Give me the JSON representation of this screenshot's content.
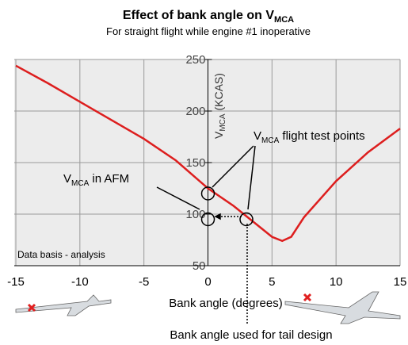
{
  "chart_data": {
    "type": "line",
    "title": {
      "text": "Effect of bank angle on V",
      "sub": "MCA"
    },
    "subtitle": "For straight flight while engine #1 inoperative",
    "xlabel": "Bank angle (degrees)",
    "ylabel": {
      "text": "V",
      "sub": "MCA",
      "rest": " (KCAS)"
    },
    "xlim": [
      -15,
      15
    ],
    "xticks": [
      -15,
      -10,
      -5,
      0,
      5,
      10,
      15
    ],
    "ylim": [
      50,
      250
    ],
    "yticks": [
      50,
      100,
      150,
      200,
      250
    ],
    "grid": true,
    "series": [
      {
        "color": "#dd1e1e",
        "x": [
          -15,
          -12.5,
          -10,
          -7.5,
          -5,
          -2.5,
          0,
          2,
          3,
          4,
          5,
          5.8,
          6.5,
          7.5,
          10,
          12.5,
          15
        ],
        "values": [
          244,
          227,
          209,
          191,
          173,
          152,
          125,
          108,
          98,
          88,
          78,
          74,
          78,
          97,
          132,
          160,
          183
        ]
      }
    ],
    "test_points": {
      "x": [
        0,
        0,
        3
      ],
      "values": [
        120,
        95,
        95
      ]
    },
    "annotations": {
      "test_points": {
        "text": "V",
        "sub": "MCA",
        "rest": " flight test points"
      },
      "afm": {
        "text": "V",
        "sub": "MCA",
        "rest": " in AFM"
      },
      "basis": "Data basis - analysis",
      "tail": "Bank angle used for tail design"
    }
  }
}
